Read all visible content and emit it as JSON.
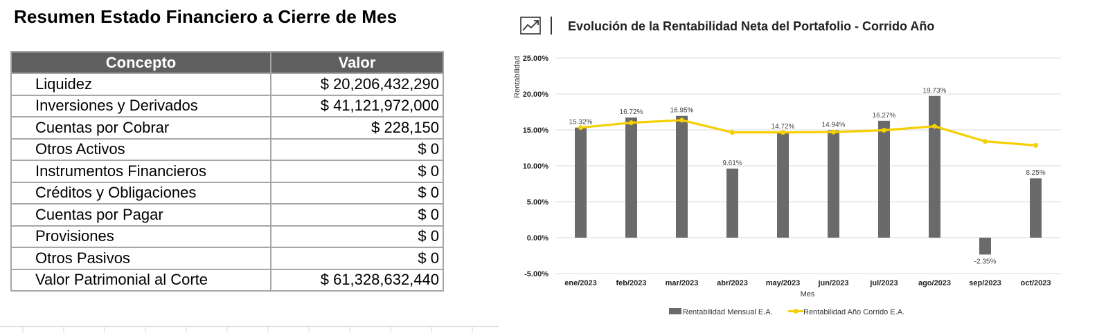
{
  "summary": {
    "title": "Resumen Estado Financiero a Cierre de Mes",
    "headers": {
      "concept": "Concepto",
      "value": "Valor"
    },
    "rows": [
      {
        "concept": "Liquidez",
        "value": "$ 20,206,432,290"
      },
      {
        "concept": "Inversiones y Derivados",
        "value": "$ 41,121,972,000"
      },
      {
        "concept": "Cuentas por Cobrar",
        "value": "$ 228,150"
      },
      {
        "concept": "Otros Activos",
        "value": "$ 0"
      },
      {
        "concept": "Instrumentos Financieros",
        "value": "$ 0"
      },
      {
        "concept": "Créditos y Obligaciones",
        "value": "$ 0"
      },
      {
        "concept": "Cuentas por Pagar",
        "value": "$ 0"
      },
      {
        "concept": "Provisiones",
        "value": "$ 0"
      },
      {
        "concept": "Otros Pasivos",
        "value": "$ 0"
      },
      {
        "concept": "Valor Patrimonial al Corte",
        "value": "$ 61,328,632,440"
      }
    ]
  },
  "chart_data": {
    "type": "bar",
    "title": "Evolución de la Rentabilidad Neta del Portafolio - Corrido Año",
    "xlabel": "Mes",
    "ylabel": "Rentabilidad",
    "ylim": [
      -5,
      25
    ],
    "yticks": [
      "25.00%",
      "20.00%",
      "15.00%",
      "10.00%",
      "5.00%",
      "0.00%",
      "-5.00%"
    ],
    "ytick_values": [
      25,
      20,
      15,
      10,
      5,
      0,
      -5
    ],
    "grid": true,
    "legend_position": "bottom",
    "categories": [
      "ene/2023",
      "feb/2023",
      "mar/2023",
      "abr/2023",
      "may/2023",
      "jun/2023",
      "jul/2023",
      "ago/2023",
      "sep/2023",
      "oct/2023"
    ],
    "series": [
      {
        "name": "Rentabilidad Mensual E.A.",
        "kind": "bar",
        "color": "#6a6a6a",
        "values": [
          15.32,
          16.72,
          16.95,
          9.61,
          14.72,
          14.94,
          16.27,
          19.73,
          -2.35,
          8.25
        ],
        "labels": [
          "15.32%",
          "16.72%",
          "16.95%",
          "9.61%",
          "14.72%",
          "14.94%",
          "16.27%",
          "19.73%",
          "-2.35%",
          "8.25%"
        ]
      },
      {
        "name": "Rentabilidad Año Corrido E.A.",
        "kind": "line",
        "color": "#f5d000",
        "values": [
          15.32,
          16.0,
          16.35,
          14.65,
          14.65,
          14.7,
          14.95,
          15.5,
          13.4,
          12.85
        ]
      }
    ]
  }
}
